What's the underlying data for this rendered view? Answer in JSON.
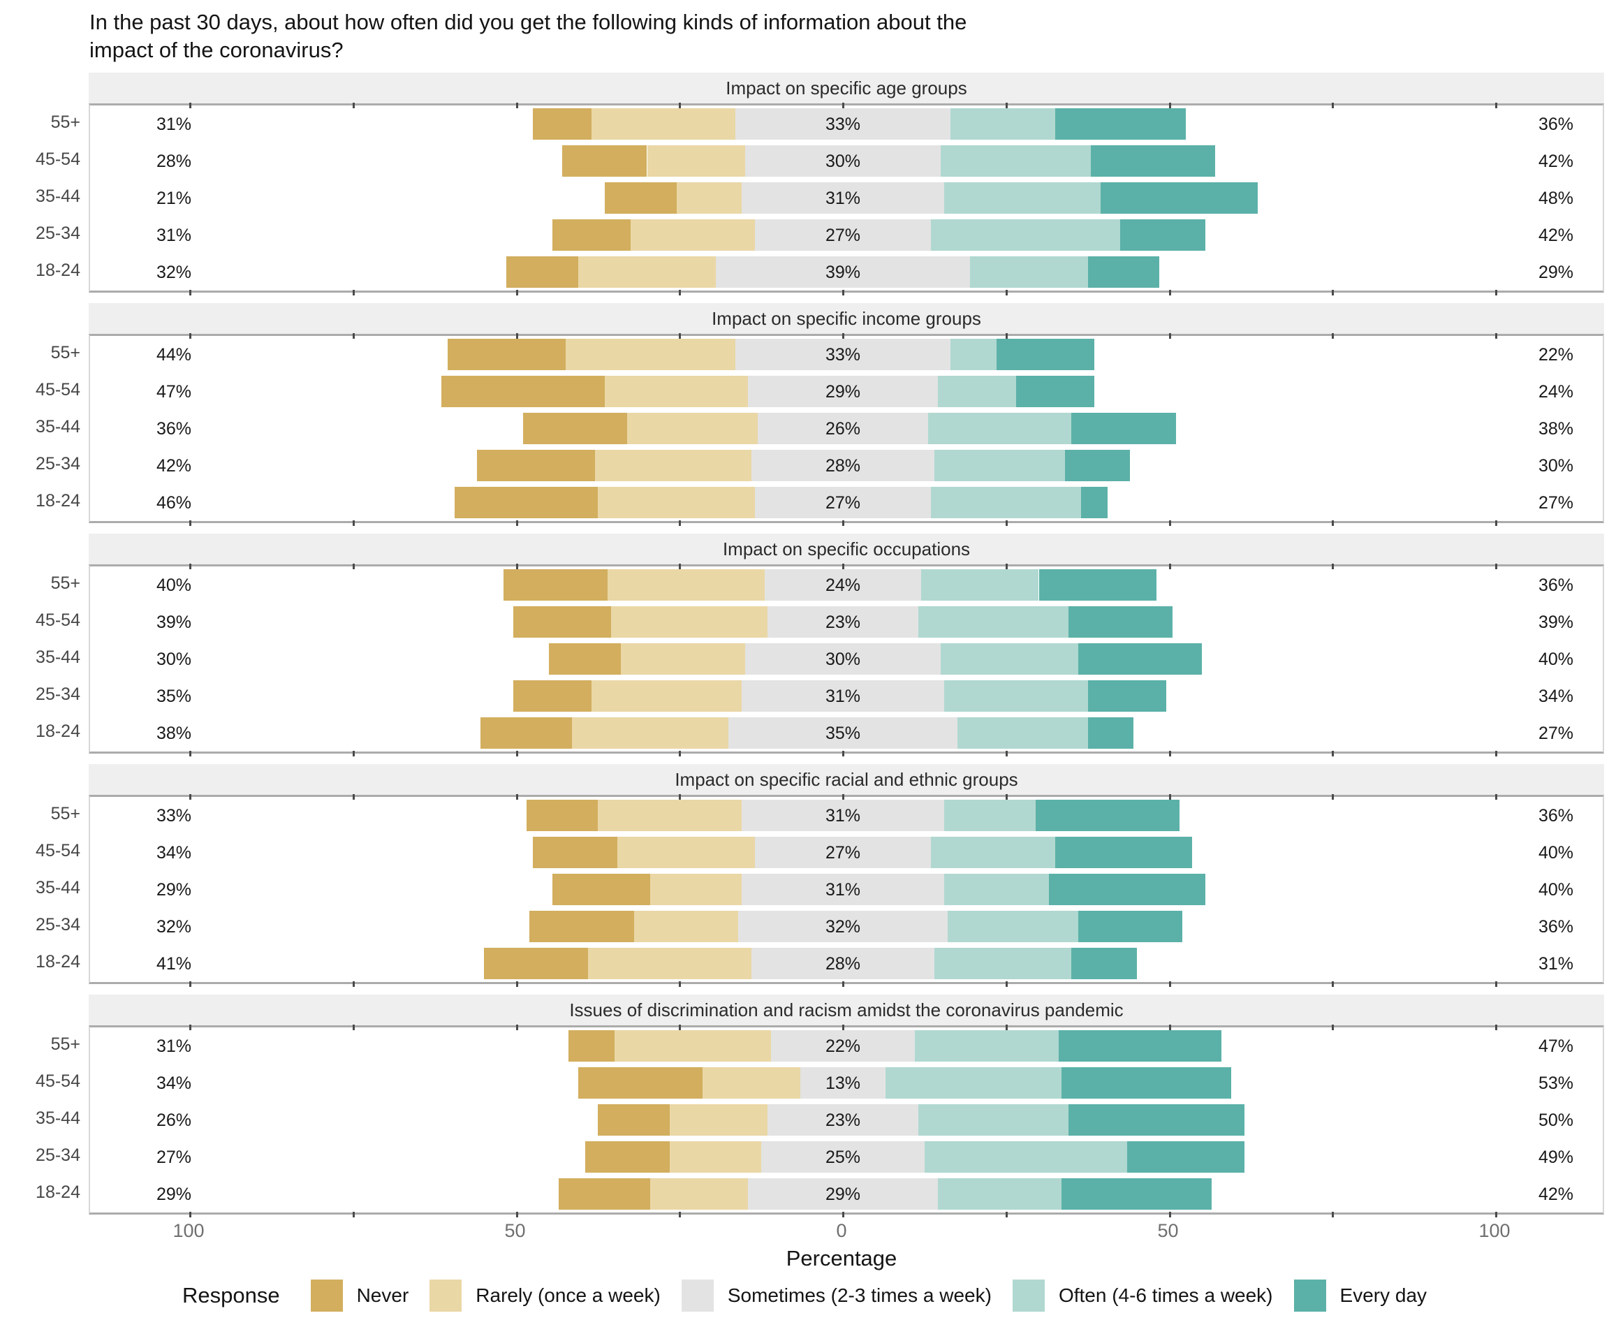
{
  "chart_data": {
    "type": "bar",
    "subtype": "diverging_stacked_bar",
    "title": "In the past 30 days, about how often did you get the following kinds of information about the\nimpact of the coronavirus?",
    "xlabel": "Percentage",
    "xlim": [
      -115,
      117
    ],
    "x_ticks": [
      -100,
      -50,
      0,
      50,
      100
    ],
    "x_tick_labels": [
      "100",
      "50",
      "0",
      "50",
      "100"
    ],
    "x_minor_tick_step": 25,
    "layout_note": "Sometimes is centered on 0; Never+Rarely extend left; Often+Every day extend right",
    "response_levels": [
      "Never",
      "Rarely (once a week)",
      "Sometimes (2-3 times a week)",
      "Often (4-6 times a week)",
      "Every day"
    ],
    "panels": [
      {
        "title": "Impact on specific age groups",
        "rows": [
          {
            "group": "55+",
            "never": 9,
            "rarely": 22,
            "sometimes": 33,
            "often": 16,
            "every_day": 20,
            "left_label": "31%",
            "center_label": "33%",
            "right_label": "36%"
          },
          {
            "group": "45-54",
            "never": 13,
            "rarely": 15,
            "sometimes": 30,
            "often": 23,
            "every_day": 19,
            "left_label": "28%",
            "center_label": "30%",
            "right_label": "42%"
          },
          {
            "group": "35-44",
            "never": 11,
            "rarely": 10,
            "sometimes": 31,
            "often": 24,
            "every_day": 24,
            "left_label": "21%",
            "center_label": "31%",
            "right_label": "48%"
          },
          {
            "group": "25-34",
            "never": 12,
            "rarely": 19,
            "sometimes": 27,
            "often": 29,
            "every_day": 13,
            "left_label": "31%",
            "center_label": "27%",
            "right_label": "42%"
          },
          {
            "group": "18-24",
            "never": 11,
            "rarely": 21,
            "sometimes": 39,
            "often": 18,
            "every_day": 11,
            "left_label": "32%",
            "center_label": "39%",
            "right_label": "29%"
          }
        ]
      },
      {
        "title": "Impact on specific income groups",
        "rows": [
          {
            "group": "55+",
            "never": 18,
            "rarely": 26,
            "sometimes": 33,
            "often": 7,
            "every_day": 15,
            "left_label": "44%",
            "center_label": "33%",
            "right_label": "22%"
          },
          {
            "group": "45-54",
            "never": 25,
            "rarely": 22,
            "sometimes": 29,
            "often": 12,
            "every_day": 12,
            "left_label": "47%",
            "center_label": "29%",
            "right_label": "24%"
          },
          {
            "group": "35-44",
            "never": 16,
            "rarely": 20,
            "sometimes": 26,
            "often": 22,
            "every_day": 16,
            "left_label": "36%",
            "center_label": "26%",
            "right_label": "38%"
          },
          {
            "group": "25-34",
            "never": 18,
            "rarely": 24,
            "sometimes": 28,
            "often": 20,
            "every_day": 10,
            "left_label": "42%",
            "center_label": "28%",
            "right_label": "30%"
          },
          {
            "group": "18-24",
            "never": 22,
            "rarely": 24,
            "sometimes": 27,
            "often": 23,
            "every_day": 4,
            "left_label": "46%",
            "center_label": "27%",
            "right_label": "27%"
          }
        ]
      },
      {
        "title": "Impact on specific occupations",
        "rows": [
          {
            "group": "55+",
            "never": 16,
            "rarely": 24,
            "sometimes": 24,
            "often": 18,
            "every_day": 18,
            "left_label": "40%",
            "center_label": "24%",
            "right_label": "36%"
          },
          {
            "group": "45-54",
            "never": 15,
            "rarely": 24,
            "sometimes": 23,
            "often": 23,
            "every_day": 16,
            "left_label": "39%",
            "center_label": "23%",
            "right_label": "39%"
          },
          {
            "group": "35-44",
            "never": 11,
            "rarely": 19,
            "sometimes": 30,
            "often": 21,
            "every_day": 19,
            "left_label": "30%",
            "center_label": "30%",
            "right_label": "40%"
          },
          {
            "group": "25-34",
            "never": 12,
            "rarely": 23,
            "sometimes": 31,
            "often": 22,
            "every_day": 12,
            "left_label": "35%",
            "center_label": "31%",
            "right_label": "34%"
          },
          {
            "group": "18-24",
            "never": 14,
            "rarely": 24,
            "sometimes": 35,
            "often": 20,
            "every_day": 7,
            "left_label": "38%",
            "center_label": "35%",
            "right_label": "27%"
          }
        ]
      },
      {
        "title": "Impact on specific racial and ethnic groups",
        "rows": [
          {
            "group": "55+",
            "never": 11,
            "rarely": 22,
            "sometimes": 31,
            "often": 14,
            "every_day": 22,
            "left_label": "33%",
            "center_label": "31%",
            "right_label": "36%"
          },
          {
            "group": "45-54",
            "never": 13,
            "rarely": 21,
            "sometimes": 27,
            "often": 19,
            "every_day": 21,
            "left_label": "34%",
            "center_label": "27%",
            "right_label": "40%"
          },
          {
            "group": "35-44",
            "never": 15,
            "rarely": 14,
            "sometimes": 31,
            "often": 16,
            "every_day": 24,
            "left_label": "29%",
            "center_label": "31%",
            "right_label": "40%"
          },
          {
            "group": "25-34",
            "never": 16,
            "rarely": 16,
            "sometimes": 32,
            "often": 20,
            "every_day": 16,
            "left_label": "32%",
            "center_label": "32%",
            "right_label": "36%"
          },
          {
            "group": "18-24",
            "never": 16,
            "rarely": 25,
            "sometimes": 28,
            "often": 21,
            "every_day": 10,
            "left_label": "41%",
            "center_label": "28%",
            "right_label": "31%"
          }
        ]
      },
      {
        "title": "Issues of discrimination and racism amidst the coronavirus pandemic",
        "rows": [
          {
            "group": "55+",
            "never": 7,
            "rarely": 24,
            "sometimes": 22,
            "often": 22,
            "every_day": 25,
            "left_label": "31%",
            "center_label": "22%",
            "right_label": "47%"
          },
          {
            "group": "45-54",
            "never": 19,
            "rarely": 15,
            "sometimes": 13,
            "often": 27,
            "every_day": 26,
            "left_label": "34%",
            "center_label": "13%",
            "right_label": "53%"
          },
          {
            "group": "35-44",
            "never": 11,
            "rarely": 15,
            "sometimes": 23,
            "often": 23,
            "every_day": 27,
            "left_label": "26%",
            "center_label": "23%",
            "right_label": "50%"
          },
          {
            "group": "25-34",
            "never": 13,
            "rarely": 14,
            "sometimes": 25,
            "often": 31,
            "every_day": 18,
            "left_label": "27%",
            "center_label": "25%",
            "right_label": "49%"
          },
          {
            "group": "18-24",
            "never": 14,
            "rarely": 15,
            "sometimes": 29,
            "often": 19,
            "every_day": 23,
            "left_label": "29%",
            "center_label": "29%",
            "right_label": "42%"
          }
        ]
      }
    ],
    "legend": {
      "title": "Response",
      "items": [
        {
          "label": "Never",
          "color_key": "never"
        },
        {
          "label": "Rarely (once a week)",
          "color_key": "rarely"
        },
        {
          "label": "Sometimes (2-3 times a week)",
          "color_key": "sometimes"
        },
        {
          "label": "Often (4-6 times a week)",
          "color_key": "often"
        },
        {
          "label": "Every day",
          "color_key": "every_day"
        }
      ],
      "position": "bottom"
    },
    "colors": {
      "never": "#D2AE5E",
      "rarely": "#EAD7A6",
      "sometimes": "#E3E3E3",
      "often": "#B0D8D0",
      "every_day": "#5BB1A8",
      "facet_header_bg": "#EFEFEF",
      "panel_border": "#ABABAB",
      "axis_text": "#6F6F6F",
      "age_label_text": "#474747",
      "label_text": "#1A1A1A"
    }
  }
}
